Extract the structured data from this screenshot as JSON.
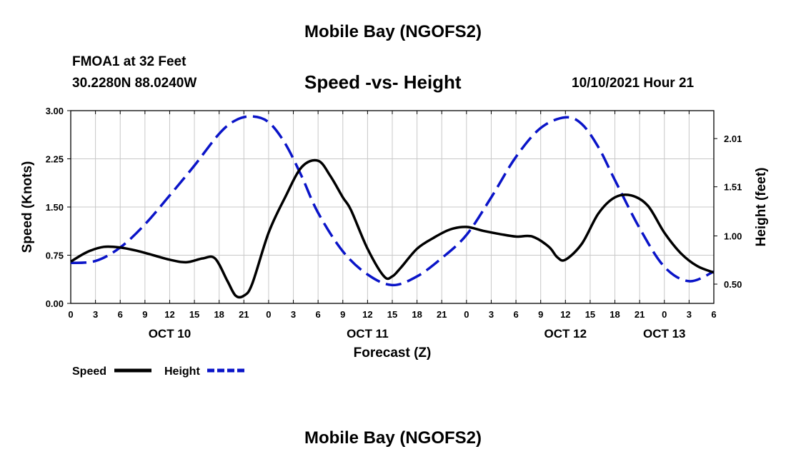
{
  "header": {
    "title": "Mobile Bay (NGOFS2)",
    "station": "FMOA1 at 32 Feet",
    "coords": "30.2280N  88.0240W",
    "subtitle": "Speed -vs- Height",
    "datetime": "10/10/2021 Hour 21"
  },
  "footer": {
    "title": "Mobile Bay (NGOFS2)"
  },
  "chart_data": {
    "type": "line",
    "title": "Speed -vs- Height",
    "xlabel": "Forecast (Z)",
    "ylabel": "Speed (Knots)",
    "ylabel_right": "Height (feet)",
    "xlim": [
      0,
      78
    ],
    "ylim": [
      0,
      3
    ],
    "ylim_right": [
      0.3,
      2.3
    ],
    "grid": true,
    "x_tick_labels": [
      "0",
      "3",
      "6",
      "9",
      "12",
      "15",
      "18",
      "21",
      "0",
      "3",
      "6",
      "9",
      "12",
      "15",
      "18",
      "21",
      "0",
      "3",
      "6",
      "9",
      "12",
      "15",
      "18",
      "21",
      "0",
      "3",
      "6"
    ],
    "date_labels": [
      {
        "label": "OCT 10",
        "x": 12
      },
      {
        "label": "OCT 11",
        "x": 36
      },
      {
        "label": "OCT 12",
        "x": 60
      },
      {
        "label": "OCT 13",
        "x": 72
      }
    ],
    "y_tick_labels": [
      "0.00",
      "0.75",
      "1.50",
      "2.25",
      "3.00"
    ],
    "y_tick_values": [
      0,
      0.75,
      1.5,
      2.25,
      3.0
    ],
    "y_right_tick_labels": [
      "0.50",
      "1.00",
      "1.51",
      "2.01"
    ],
    "y_right_tick_values": [
      0.5,
      1.0,
      1.51,
      2.01
    ],
    "legend": [
      {
        "name": "Speed",
        "color": "#000000",
        "style": "solid"
      },
      {
        "name": "Height",
        "color": "#0a14c8",
        "style": "dashed"
      }
    ],
    "series": [
      {
        "name": "Speed",
        "axis": "left",
        "color": "#000000",
        "x": [
          0,
          2,
          4,
          6,
          8,
          10,
          12,
          14,
          16,
          17.5,
          19,
          20,
          21,
          22,
          24,
          26,
          28,
          30,
          31.5,
          33,
          34,
          36,
          38,
          39,
          40,
          42,
          44,
          46,
          48,
          50,
          52,
          54,
          56,
          58,
          59,
          60,
          62,
          64,
          66,
          68,
          70,
          72,
          74,
          76,
          78
        ],
        "values": [
          0.65,
          0.8,
          0.88,
          0.87,
          0.82,
          0.75,
          0.68,
          0.64,
          0.7,
          0.7,
          0.35,
          0.12,
          0.12,
          0.3,
          1.1,
          1.65,
          2.12,
          2.22,
          1.98,
          1.65,
          1.45,
          0.85,
          0.42,
          0.42,
          0.55,
          0.85,
          1.02,
          1.15,
          1.19,
          1.13,
          1.08,
          1.04,
          1.04,
          0.88,
          0.72,
          0.68,
          0.93,
          1.4,
          1.65,
          1.68,
          1.52,
          1.1,
          0.78,
          0.58,
          0.48
        ]
      },
      {
        "name": "Height",
        "axis": "right",
        "color": "#0a14c8",
        "x": [
          0,
          3,
          6,
          9,
          12,
          15,
          18,
          20,
          22,
          24,
          26,
          28,
          30,
          33,
          36,
          39,
          42,
          45,
          48,
          51,
          54,
          57,
          60,
          62,
          64,
          66,
          69,
          72,
          75,
          78
        ],
        "values": [
          0.72,
          0.74,
          0.88,
          1.12,
          1.42,
          1.73,
          2.06,
          2.2,
          2.24,
          2.18,
          1.96,
          1.62,
          1.24,
          0.84,
          0.6,
          0.49,
          0.58,
          0.77,
          1.01,
          1.4,
          1.82,
          2.12,
          2.23,
          2.16,
          1.92,
          1.58,
          1.08,
          0.68,
          0.53,
          0.63
        ]
      }
    ]
  }
}
